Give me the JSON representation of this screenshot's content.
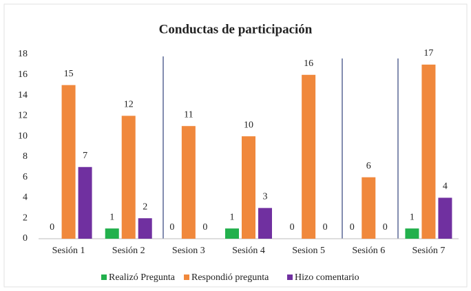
{
  "chart_data": {
    "type": "bar",
    "title": "Conductas de participación",
    "categories": [
      "Sesión 1",
      "Sesión 2",
      "Sesion 3",
      "Sesión 4",
      "Sesion 5",
      "Sesión 6",
      "Sesión 7"
    ],
    "series": [
      {
        "name": "Realizó Pregunta",
        "color": "#22b04c",
        "values": [
          0,
          1,
          0,
          1,
          0,
          0,
          1
        ]
      },
      {
        "name": "Respondió pregunta",
        "color": "#f0883c",
        "values": [
          15,
          12,
          11,
          10,
          16,
          6,
          17
        ]
      },
      {
        "name": "Hizo comentario",
        "color": "#7030a0",
        "values": [
          7,
          2,
          0,
          3,
          0,
          0,
          4
        ]
      }
    ],
    "ylim": [
      0,
      18
    ],
    "yticks": [
      0,
      2,
      4,
      6,
      8,
      10,
      12,
      14,
      16,
      18
    ],
    "grid": false,
    "legend": "bottom"
  }
}
